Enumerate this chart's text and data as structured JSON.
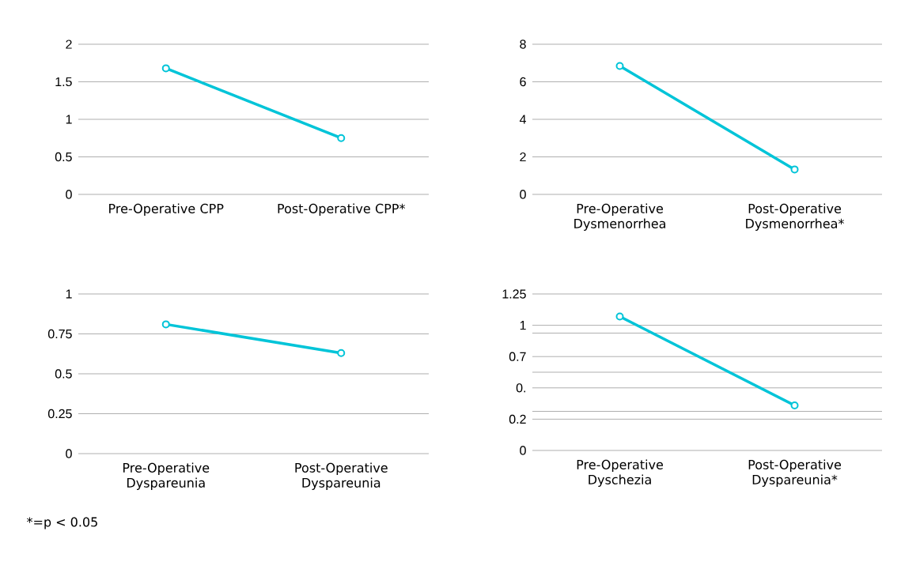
{
  "chart_data": [
    {
      "type": "line",
      "categories": [
        "Pre-Operative CPP",
        "Post-Operative CPP*"
      ],
      "values": [
        1.68,
        0.75
      ],
      "color": "#00c4d8",
      "ylim": [
        0,
        2
      ],
      "yticks": [
        0,
        0.5,
        1,
        1.5,
        2
      ],
      "grid": "y",
      "marker": "circle"
    },
    {
      "type": "line",
      "categories": [
        "Pre-Operative Dysmenorrhea",
        "Post-Operative Dysmenorrhea*"
      ],
      "values": [
        6.84,
        1.33
      ],
      "color": "#00c4d8",
      "ylim": [
        0,
        8
      ],
      "yticks": [
        0,
        2,
        4,
        6,
        8
      ],
      "grid": "y",
      "marker": "circle"
    },
    {
      "type": "line",
      "categories": [
        "Pre-Operative Dyspareunia",
        "Post-Operative Dyspareunia"
      ],
      "values": [
        0.81,
        0.63
      ],
      "color": "#00c4d8",
      "ylim": [
        0,
        1
      ],
      "yticks": [
        0,
        0.25,
        0.5,
        0.75,
        1
      ],
      "grid": "y",
      "marker": "circle",
      "annotations": [
        "*=p < 0.05"
      ]
    },
    {
      "type": "line",
      "categories": [
        "Pre-Operative Dyschezia",
        "Post-Operative Dyspareunia*"
      ],
      "values": [
        1.07,
        0.36
      ],
      "color": "#00c4d8",
      "ylim": [
        0,
        1.25
      ],
      "yticks": [
        0,
        {
          "value": 0.25,
          "label": "0.2"
        },
        {
          "value": 0.3125,
          "label": null
        },
        {
          "value": 0.5,
          "label": "0."
        },
        {
          "value": 0.625,
          "label": null
        },
        {
          "value": 0.75,
          "label": "0.7"
        },
        {
          "value": 0.9375,
          "label": null
        },
        1,
        1.25
      ],
      "grid": "y",
      "marker": "circle"
    }
  ]
}
